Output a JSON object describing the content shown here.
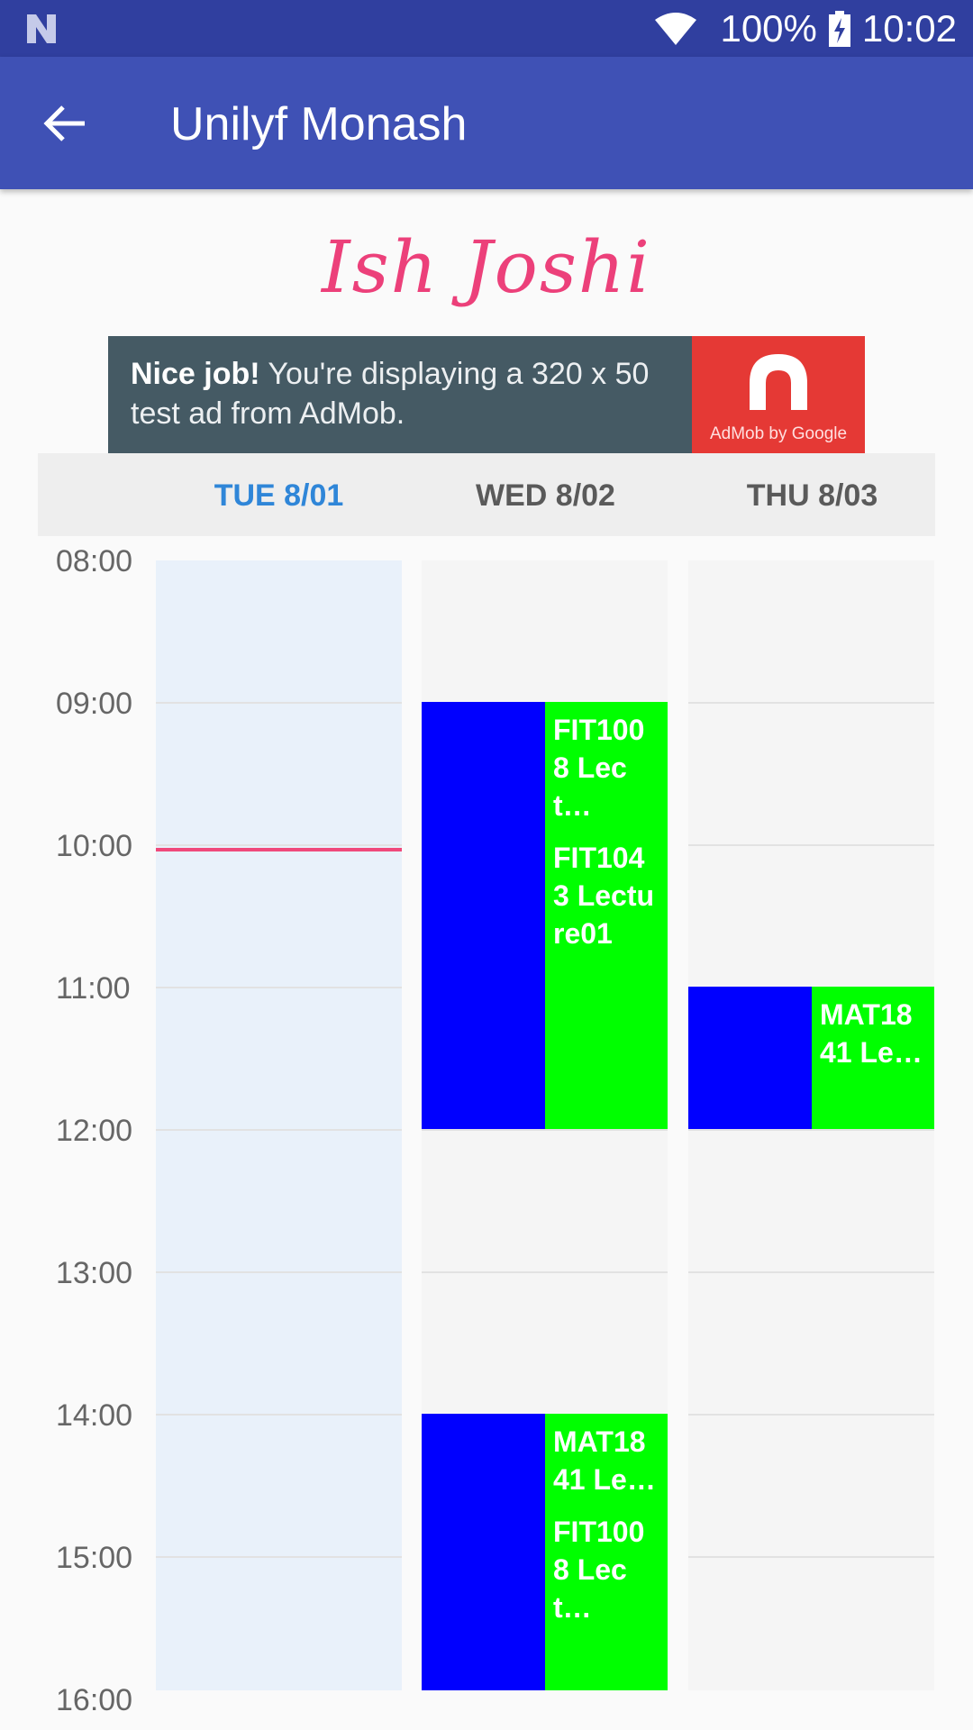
{
  "status_bar": {
    "battery": "100%",
    "time": "10:02"
  },
  "app_bar": {
    "title": "Unilyf Monash"
  },
  "user_name": "Ish Joshi",
  "ad": {
    "bold": "Nice job!",
    "text": " You're displaying a 320 x 50 test ad from AdMob.",
    "logo_caption": "AdMob by Google"
  },
  "days": [
    {
      "label": "TUE 8/01",
      "today": true
    },
    {
      "label": "WED 8/02",
      "today": false
    },
    {
      "label": "THU 8/03",
      "today": false
    }
  ],
  "hours": [
    "08:00",
    "09:00",
    "10:00",
    "11:00",
    "12:00",
    "13:00",
    "14:00",
    "15:00",
    "16:00"
  ],
  "events": {
    "wed_morning_1": "FIT1008 Lect…",
    "wed_morning_2": "FIT1043 Lecture01",
    "thu_morning": "MAT1841 Le…",
    "wed_afternoon_1": "MAT1841 Le…",
    "wed_afternoon_2": "FIT1008 Lect…"
  },
  "colors": {
    "status_bar": "#303f9f",
    "app_bar": "#3f51b5",
    "event_green": "#00ff00",
    "event_blue": "#0000ff",
    "now_line": "#f0497b",
    "today_label": "#2f86d8"
  }
}
